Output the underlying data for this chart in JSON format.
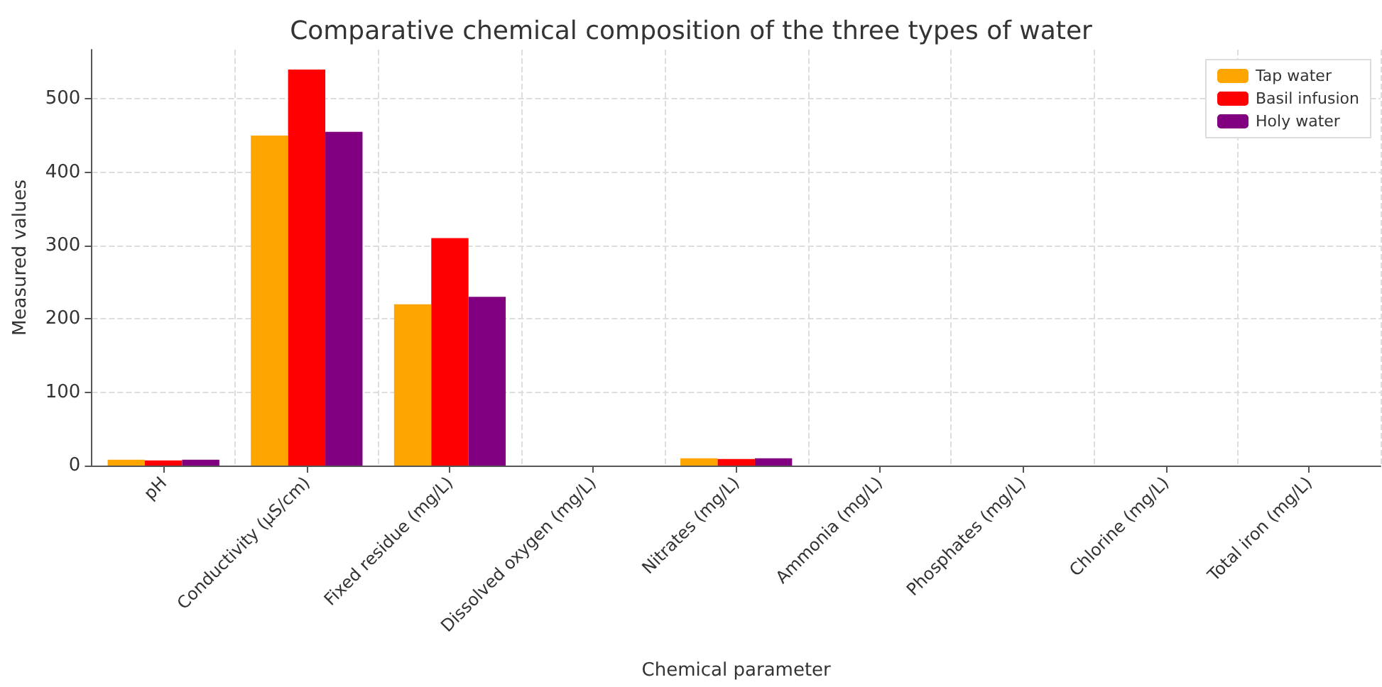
{
  "chart_data": {
    "type": "bar",
    "title": "Comparative chemical composition of the three types of water",
    "xlabel": "Chemical parameter",
    "ylabel": "Measured values",
    "categories": [
      "pH",
      "Conductivity (µS/cm)",
      "Fixed residue (mg/L)",
      "Dissolved oxygen (mg/L)",
      "Nitrates (mg/L)",
      "Ammonia (mg/L)",
      "Phosphates (mg/L)",
      "Chlorine (mg/L)",
      "Total iron (mg/L)"
    ],
    "series": [
      {
        "name": "Tap water",
        "color": "#ffa500",
        "values": [
          8,
          450,
          220,
          0,
          10,
          0,
          0,
          0,
          0
        ]
      },
      {
        "name": "Basil infusion",
        "color": "#ff0000",
        "values": [
          7,
          540,
          310,
          0,
          9,
          0,
          0,
          0,
          0
        ]
      },
      {
        "name": "Holy water",
        "color": "#800080",
        "values": [
          8,
          455,
          230,
          0,
          10,
          0,
          0,
          0,
          0
        ]
      }
    ],
    "ylim": [
      0,
      567
    ],
    "yticks": [
      0,
      100,
      200,
      300,
      400,
      500
    ],
    "grid": true,
    "legend": "top right"
  }
}
